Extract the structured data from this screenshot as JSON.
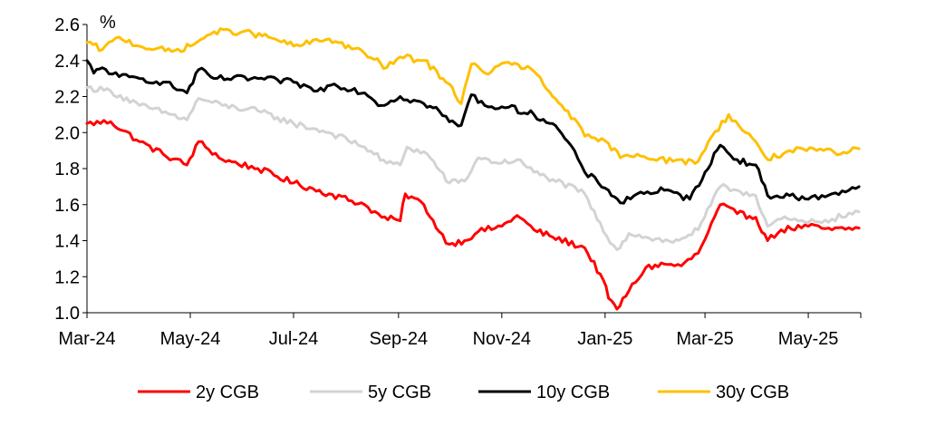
{
  "chart_data": {
    "type": "line",
    "unit_label": "%",
    "ylim": [
      1.0,
      2.6
    ],
    "yticks": [
      1.0,
      1.2,
      1.4,
      1.6,
      1.8,
      2.0,
      2.2,
      2.4,
      2.6
    ],
    "ytick_labels": [
      "1.0",
      "1.2",
      "1.4",
      "1.6",
      "1.8",
      "2.0",
      "2.2",
      "2.4",
      "2.6"
    ],
    "xlim": [
      "2024-03-01",
      "2025-06-01"
    ],
    "xticks": [
      {
        "date": "2024-03-01",
        "label": "Mar-24"
      },
      {
        "date": "2024-05-01",
        "label": "May-24"
      },
      {
        "date": "2024-07-01",
        "label": "Jul-24"
      },
      {
        "date": "2024-09-01",
        "label": "Sep-24"
      },
      {
        "date": "2024-11-01",
        "label": "Nov-24"
      },
      {
        "date": "2025-01-01",
        "label": "Jan-25"
      },
      {
        "date": "2025-03-01",
        "label": "Mar-25"
      },
      {
        "date": "2025-05-01",
        "label": "May-25"
      }
    ],
    "legend_position": "bottom",
    "grid": false,
    "series": [
      {
        "name": "2y CGB",
        "color": "#ff0000",
        "points": [
          [
            "2024-03-01",
            2.05
          ],
          [
            "2024-03-15",
            2.06
          ],
          [
            "2024-04-01",
            1.95
          ],
          [
            "2024-04-15",
            1.88
          ],
          [
            "2024-04-29",
            1.82
          ],
          [
            "2024-05-06",
            1.95
          ],
          [
            "2024-05-20",
            1.85
          ],
          [
            "2024-06-10",
            1.8
          ],
          [
            "2024-07-01",
            1.72
          ],
          [
            "2024-07-22",
            1.66
          ],
          [
            "2024-08-12",
            1.6
          ],
          [
            "2024-08-22",
            1.53
          ],
          [
            "2024-09-02",
            1.51
          ],
          [
            "2024-09-05",
            1.66
          ],
          [
            "2024-09-16",
            1.6
          ],
          [
            "2024-09-25",
            1.45
          ],
          [
            "2024-10-01",
            1.38
          ],
          [
            "2024-10-10",
            1.4
          ],
          [
            "2024-10-18",
            1.45
          ],
          [
            "2024-11-01",
            1.48
          ],
          [
            "2024-11-10",
            1.54
          ],
          [
            "2024-11-20",
            1.46
          ],
          [
            "2024-12-01",
            1.42
          ],
          [
            "2024-12-20",
            1.36
          ],
          [
            "2024-12-31",
            1.18
          ],
          [
            "2025-01-03",
            1.08
          ],
          [
            "2025-01-08",
            1.02
          ],
          [
            "2025-01-15",
            1.12
          ],
          [
            "2025-01-25",
            1.25
          ],
          [
            "2025-02-05",
            1.27
          ],
          [
            "2025-02-15",
            1.26
          ],
          [
            "2025-02-25",
            1.33
          ],
          [
            "2025-03-03",
            1.45
          ],
          [
            "2025-03-10",
            1.6
          ],
          [
            "2025-03-20",
            1.55
          ],
          [
            "2025-03-31",
            1.53
          ],
          [
            "2025-04-07",
            1.4
          ],
          [
            "2025-04-15",
            1.46
          ],
          [
            "2025-05-01",
            1.48
          ],
          [
            "2025-05-15",
            1.46
          ],
          [
            "2025-05-31",
            1.47
          ]
        ]
      },
      {
        "name": "5y CGB",
        "color": "#d3d3d3",
        "points": [
          [
            "2024-03-01",
            2.25
          ],
          [
            "2024-03-15",
            2.23
          ],
          [
            "2024-04-01",
            2.15
          ],
          [
            "2024-04-20",
            2.1
          ],
          [
            "2024-04-29",
            2.07
          ],
          [
            "2024-05-06",
            2.19
          ],
          [
            "2024-05-20",
            2.15
          ],
          [
            "2024-06-10",
            2.12
          ],
          [
            "2024-07-01",
            2.05
          ],
          [
            "2024-07-22",
            2.0
          ],
          [
            "2024-08-12",
            1.92
          ],
          [
            "2024-08-25",
            1.83
          ],
          [
            "2024-09-02",
            1.82
          ],
          [
            "2024-09-06",
            1.92
          ],
          [
            "2024-09-18",
            1.88
          ],
          [
            "2024-10-01",
            1.72
          ],
          [
            "2024-10-10",
            1.73
          ],
          [
            "2024-10-18",
            1.86
          ],
          [
            "2024-11-01",
            1.83
          ],
          [
            "2024-11-10",
            1.85
          ],
          [
            "2024-11-20",
            1.78
          ],
          [
            "2024-12-01",
            1.74
          ],
          [
            "2024-12-20",
            1.66
          ],
          [
            "2024-12-31",
            1.45
          ],
          [
            "2025-01-08",
            1.35
          ],
          [
            "2025-01-15",
            1.44
          ],
          [
            "2025-01-25",
            1.42
          ],
          [
            "2025-02-10",
            1.39
          ],
          [
            "2025-02-25",
            1.46
          ],
          [
            "2025-03-10",
            1.7
          ],
          [
            "2025-03-20",
            1.68
          ],
          [
            "2025-03-31",
            1.65
          ],
          [
            "2025-04-07",
            1.48
          ],
          [
            "2025-04-15",
            1.52
          ],
          [
            "2025-05-01",
            1.5
          ],
          [
            "2025-05-15",
            1.52
          ],
          [
            "2025-05-31",
            1.56
          ]
        ]
      },
      {
        "name": "10y CGB",
        "color": "#000000",
        "points": [
          [
            "2024-03-01",
            2.4
          ],
          [
            "2024-03-05",
            2.33
          ],
          [
            "2024-03-10",
            2.36
          ],
          [
            "2024-03-20",
            2.31
          ],
          [
            "2024-04-01",
            2.3
          ],
          [
            "2024-04-15",
            2.28
          ],
          [
            "2024-04-29",
            2.22
          ],
          [
            "2024-05-06",
            2.35
          ],
          [
            "2024-05-15",
            2.3
          ],
          [
            "2024-06-10",
            2.3
          ],
          [
            "2024-07-01",
            2.28
          ],
          [
            "2024-07-15",
            2.23
          ],
          [
            "2024-07-25",
            2.27
          ],
          [
            "2024-08-12",
            2.22
          ],
          [
            "2024-08-22",
            2.15
          ],
          [
            "2024-09-02",
            2.2
          ],
          [
            "2024-09-16",
            2.16
          ],
          [
            "2024-09-25",
            2.12
          ],
          [
            "2024-10-01",
            2.06
          ],
          [
            "2024-10-08",
            2.04
          ],
          [
            "2024-10-14",
            2.21
          ],
          [
            "2024-10-22",
            2.15
          ],
          [
            "2024-11-05",
            2.14
          ],
          [
            "2024-11-20",
            2.1
          ],
          [
            "2024-12-01",
            2.05
          ],
          [
            "2024-12-10",
            1.95
          ],
          [
            "2024-12-20",
            1.78
          ],
          [
            "2025-01-03",
            1.68
          ],
          [
            "2025-01-10",
            1.61
          ],
          [
            "2025-01-20",
            1.66
          ],
          [
            "2025-02-05",
            1.68
          ],
          [
            "2025-02-20",
            1.63
          ],
          [
            "2025-03-01",
            1.78
          ],
          [
            "2025-03-10",
            1.93
          ],
          [
            "2025-03-20",
            1.85
          ],
          [
            "2025-03-31",
            1.82
          ],
          [
            "2025-04-07",
            1.65
          ],
          [
            "2025-04-20",
            1.65
          ],
          [
            "2025-05-01",
            1.63
          ],
          [
            "2025-05-15",
            1.66
          ],
          [
            "2025-05-31",
            1.7
          ]
        ]
      },
      {
        "name": "30y CGB",
        "color": "#ffc000",
        "points": [
          [
            "2024-03-01",
            2.5
          ],
          [
            "2024-03-10",
            2.46
          ],
          [
            "2024-03-20",
            2.53
          ],
          [
            "2024-04-01",
            2.48
          ],
          [
            "2024-04-20",
            2.45
          ],
          [
            "2024-05-01",
            2.48
          ],
          [
            "2024-05-15",
            2.56
          ],
          [
            "2024-06-01",
            2.56
          ],
          [
            "2024-06-20",
            2.52
          ],
          [
            "2024-07-01",
            2.48
          ],
          [
            "2024-07-22",
            2.52
          ],
          [
            "2024-08-12",
            2.44
          ],
          [
            "2024-08-25",
            2.36
          ],
          [
            "2024-09-02",
            2.42
          ],
          [
            "2024-09-16",
            2.4
          ],
          [
            "2024-10-01",
            2.27
          ],
          [
            "2024-10-08",
            2.16
          ],
          [
            "2024-10-14",
            2.38
          ],
          [
            "2024-10-22",
            2.33
          ],
          [
            "2024-11-05",
            2.39
          ],
          [
            "2024-11-20",
            2.34
          ],
          [
            "2024-12-01",
            2.2
          ],
          [
            "2024-12-10",
            2.12
          ],
          [
            "2024-12-20",
            1.98
          ],
          [
            "2025-01-03",
            1.94
          ],
          [
            "2025-01-10",
            1.86
          ],
          [
            "2025-01-20",
            1.88
          ],
          [
            "2025-02-10",
            1.84
          ],
          [
            "2025-02-25",
            1.84
          ],
          [
            "2025-03-03",
            1.95
          ],
          [
            "2025-03-15",
            2.1
          ],
          [
            "2025-03-25",
            2.0
          ],
          [
            "2025-03-31",
            1.95
          ],
          [
            "2025-04-07",
            1.85
          ],
          [
            "2025-04-20",
            1.9
          ],
          [
            "2025-05-10",
            1.9
          ],
          [
            "2025-05-20",
            1.88
          ],
          [
            "2025-05-31",
            1.91
          ]
        ]
      }
    ]
  }
}
